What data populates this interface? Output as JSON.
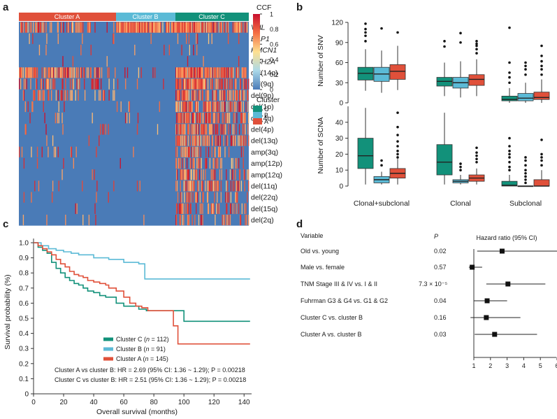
{
  "colors": {
    "cluster_a": "#e0503a",
    "cluster_b": "#5bbad6",
    "cluster_c": "#12917a",
    "heat_low": "#4a7bb7",
    "heat_high": "#d73027"
  },
  "chart_data": [
    {
      "panel": "a",
      "type": "heatmap",
      "cluster_labels": [
        "Cluster A",
        "Cluster B",
        "Cluster C"
      ],
      "rows": [
        "VHL",
        "BAP1",
        "HMCN1",
        "USH2A",
        "del(14q)",
        "del(9q)",
        "del(9p)",
        "del(1p)",
        "del(4q)",
        "del(4p)",
        "del(13q)",
        "amp(3q)",
        "amp(12p)",
        "amp(12q)",
        "del(11q)",
        "del(22q)",
        "del(15q)",
        "del(2q)"
      ],
      "italic_rows": 4,
      "sample_counts": [
        145,
        91,
        112
      ],
      "row_frequency": {
        "A": [
          0.35,
          0.05,
          0.02,
          0.02,
          0.55,
          0.3,
          0.3,
          0.05,
          0.08,
          0.05,
          0.05,
          0.08,
          0.05,
          0.05,
          0.05,
          0.05,
          0.04,
          0.03
        ],
        "B": [
          0.95,
          0.01,
          0.01,
          0.01,
          0.04,
          0.02,
          0.02,
          0.04,
          0.01,
          0.01,
          0.01,
          0.03,
          0.02,
          0.02,
          0.01,
          0.01,
          0.01,
          0.01
        ],
        "C": [
          0.7,
          0.03,
          0.03,
          0.02,
          0.75,
          0.6,
          0.55,
          0.6,
          0.55,
          0.5,
          0.45,
          0.25,
          0.3,
          0.3,
          0.45,
          0.3,
          0.3,
          0.25
        ]
      },
      "colorbar": {
        "title": "CCF",
        "ticks": [
          "1",
          "0.8",
          "0.6",
          "0.4",
          "0.2",
          "0"
        ],
        "range": [
          0,
          1
        ]
      },
      "cluster_legend": {
        "title": "Cluster",
        "items": [
          "C",
          "B",
          "A"
        ]
      }
    },
    {
      "panel": "b",
      "type": "box",
      "groups": [
        "Clonal+subclonal",
        "Clonal",
        "Subclonal"
      ],
      "series": [
        "Cluster C",
        "Cluster B",
        "Cluster A"
      ],
      "top": {
        "ylabel": "Number of SNV",
        "ylim": [
          0,
          120
        ],
        "ticks": [
          "0",
          "30",
          "60",
          "90",
          "120"
        ],
        "boxes": [
          [
            [
              18,
              34,
              44,
              53,
              80
            ],
            [
              15,
              32,
              43,
              53,
              78
            ],
            [
              19,
              35,
              47,
              57,
              85
            ]
          ],
          [
            [
              10,
              25,
              32,
              38,
              60
            ],
            [
              8,
              22,
              30,
              38,
              62
            ],
            [
              10,
              26,
              35,
              42,
              65
            ]
          ],
          [
            [
              0,
              3,
              5,
              10,
              22
            ],
            [
              0,
              3,
              7,
              14,
              30
            ],
            [
              0,
              5,
              8,
              16,
              35
            ]
          ]
        ],
        "outliers": [
          [
            [
              92,
              100,
              105,
              110,
              118
            ],
            [
              111
            ],
            [
              105
            ]
          ],
          [
            [
              84,
              92
            ],
            [
              90,
              104
            ],
            [
              74,
              80,
              85,
              88,
              92
            ]
          ],
          [
            [
              30,
              38,
              45,
              60,
              112
            ],
            [
              42,
              50,
              55,
              60
            ],
            [
              42,
              50,
              55,
              62,
              70,
              85
            ]
          ]
        ]
      },
      "bottom": {
        "ylabel": "Number of SCNA",
        "ylim": [
          0,
          50
        ],
        "ticks": [
          "0",
          "10",
          "20",
          "30",
          "40"
        ],
        "boxes": [
          [
            [
              1,
              11,
              19,
              30,
              49
            ],
            [
              1,
              2,
              4,
              6,
              9
            ],
            [
              1,
              5,
              8,
              11,
              17
            ]
          ],
          [
            [
              1,
              7,
              15,
              26,
              46
            ],
            [
              1,
              2,
              3,
              4,
              7
            ],
            [
              1,
              3,
              5,
              7,
              11
            ]
          ],
          [
            [
              0,
              0,
              0.5,
              3,
              7
            ],
            [
              0,
              0,
              0,
              0,
              0
            ],
            [
              0,
              0,
              0,
              4,
              10
            ]
          ]
        ],
        "outliers": [
          [
            [],
            [
              13,
              16
            ],
            [
              18,
              20,
              22,
              25,
              28,
              32,
              37,
              46
            ]
          ],
          [
            [],
            [
              10,
              12,
              14
            ],
            [
              15,
              17,
              19,
              21,
              24
            ]
          ],
          [
            [
              10,
              12,
              15,
              18,
              20,
              22,
              25,
              30
            ],
            [
              2,
              4,
              6,
              8,
              10,
              13,
              16,
              18
            ],
            [
              13,
              16,
              18,
              20,
              29
            ]
          ]
        ]
      }
    },
    {
      "panel": "c",
      "type": "line",
      "xlabel": "Overall survival (months)",
      "ylabel": "Survival probability (%)",
      "xlim": [
        0,
        145
      ],
      "ylim": [
        0,
        1
      ],
      "xticks": [
        "0",
        "20",
        "40",
        "60",
        "80",
        "100",
        "120",
        "140"
      ],
      "yticks": [
        "0",
        "0.1",
        "0.2",
        "0.3",
        "0.4",
        "0.5",
        "0.6",
        "0.7",
        "0.8",
        "0.9",
        "1.0"
      ],
      "series": [
        {
          "name": "Cluster C",
          "n": "112",
          "color_key": "cluster_c",
          "x": [
            0,
            3,
            6,
            9,
            12,
            15,
            18,
            21,
            24,
            27,
            30,
            33,
            36,
            40,
            44,
            48,
            50,
            55,
            60,
            65,
            70,
            75,
            80,
            85,
            90,
            95,
            100,
            144
          ],
          "y": [
            1,
            0.97,
            0.95,
            0.93,
            0.87,
            0.83,
            0.8,
            0.77,
            0.75,
            0.73,
            0.72,
            0.7,
            0.68,
            0.67,
            0.65,
            0.64,
            0.64,
            0.6,
            0.58,
            0.58,
            0.56,
            0.55,
            0.55,
            0.55,
            0.55,
            0.55,
            0.48,
            0.48
          ]
        },
        {
          "name": "Cluster B",
          "n": "91",
          "color_key": "cluster_b",
          "x": [
            0,
            5,
            10,
            15,
            20,
            25,
            30,
            40,
            50,
            55,
            60,
            70,
            74,
            144
          ],
          "y": [
            1,
            0.98,
            0.96,
            0.95,
            0.94,
            0.93,
            0.92,
            0.9,
            0.89,
            0.89,
            0.87,
            0.86,
            0.76,
            0.76
          ]
        },
        {
          "name": "Cluster A",
          "n": "145",
          "color_key": "cluster_a",
          "x": [
            0,
            3,
            6,
            9,
            12,
            15,
            18,
            21,
            24,
            27,
            30,
            33,
            36,
            40,
            44,
            48,
            50,
            55,
            60,
            64,
            68,
            72,
            76,
            80,
            85,
            93,
            96,
            144
          ],
          "y": [
            1,
            0.98,
            0.96,
            0.94,
            0.92,
            0.89,
            0.86,
            0.84,
            0.81,
            0.79,
            0.78,
            0.77,
            0.75,
            0.74,
            0.73,
            0.72,
            0.7,
            0.68,
            0.64,
            0.6,
            0.58,
            0.57,
            0.55,
            0.55,
            0.55,
            0.45,
            0.33,
            0.33
          ]
        }
      ],
      "annotations": [
        "Cluster A vs cluster B: HR = 2.69 (95% CI: 1.36 ~ 1.29); P = 0.00218",
        "Cluster C vs cluster B: HR = 2.51 (95% CI: 1.36 ~ 1.29); P = 0.00218"
      ]
    },
    {
      "panel": "d",
      "type": "forest",
      "header_variable": "Variable",
      "header_p": "P",
      "header_hr": "Hazard ratio (95% CI)",
      "xlim": [
        1,
        6
      ],
      "xticks": [
        "1",
        "2",
        "3",
        "4",
        "5",
        "6"
      ],
      "rows": [
        {
          "label": "Old vs. young",
          "p": "0.02",
          "hr": 2.7,
          "lo": 1.2,
          "hi": 6.0
        },
        {
          "label": "Male vs. female",
          "p": "0.57",
          "hr": 0.9,
          "lo": 0.7,
          "hi": 1.5
        },
        {
          "label": "TNM Stage III & IV vs. I & II",
          "p": "7.3 × 10⁻⁵",
          "hr": 3.05,
          "lo": 1.75,
          "hi": 5.3
        },
        {
          "label": "Fuhrman G3 & G4 vs. G1 & G2",
          "p": "0.04",
          "hr": 1.8,
          "lo": 1.0,
          "hi": 3.0
        },
        {
          "label": "Cluster C vs. cluster B",
          "p": "0.16",
          "hr": 1.75,
          "lo": 0.8,
          "hi": 3.8
        },
        {
          "label": "Cluster A vs. cluster B",
          "p": "0.03",
          "hr": 2.25,
          "lo": 1.05,
          "hi": 4.8
        }
      ]
    }
  ],
  "panel_labels": [
    "a",
    "b",
    "c",
    "d"
  ]
}
